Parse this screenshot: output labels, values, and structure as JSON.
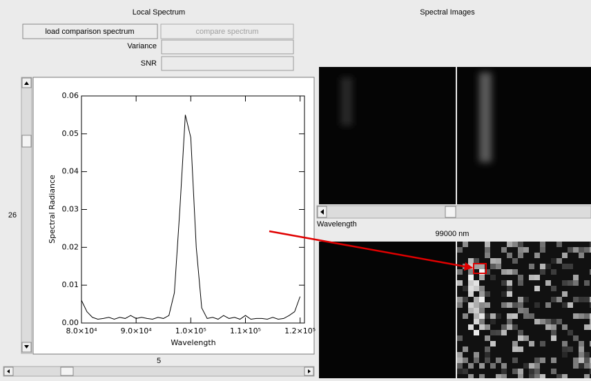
{
  "left_panel": {
    "title": "Local Spectrum",
    "buttons": [
      "load comparison spectrum",
      "compare spectrum"
    ],
    "fields": [
      "Variance",
      "SNR"
    ],
    "vertical_slider_value": 26,
    "horizontal_slider_value": 5
  },
  "chart_data": {
    "type": "line",
    "x_label": "Wavelength",
    "y_label": "Spectral Radiance",
    "color": "#000000",
    "x": [
      80000,
      81000,
      82000,
      83000,
      84000,
      85000,
      86000,
      87000,
      88000,
      89000,
      90000,
      91000,
      92000,
      93000,
      94000,
      95000,
      96000,
      97000,
      98000,
      99000,
      100000,
      101000,
      102000,
      103000,
      104000,
      105000,
      106000,
      107000,
      108000,
      109000,
      110000,
      111000,
      112000,
      113000,
      114000,
      115000,
      116000,
      117000,
      118000,
      119000,
      120000
    ],
    "values": [
      0.006,
      0.003,
      0.0015,
      0.001,
      0.0012,
      0.0015,
      0.001,
      0.0015,
      0.0012,
      0.002,
      0.0012,
      0.0015,
      0.0012,
      0.001,
      0.0015,
      0.0012,
      0.002,
      0.008,
      0.03,
      0.055,
      0.049,
      0.02,
      0.004,
      0.0012,
      0.0015,
      0.001,
      0.002,
      0.0012,
      0.0015,
      0.001,
      0.002,
      0.001,
      0.0012,
      0.0012,
      0.001,
      0.0015,
      0.001,
      0.0012,
      0.002,
      0.003,
      0.007
    ],
    "xlim": [
      80000,
      120800
    ],
    "ylim": [
      0,
      0.06
    ],
    "xticks": [
      {
        "value": 80000,
        "label": "8.0×10⁴"
      },
      {
        "value": 90000,
        "label": "9.0×10⁴"
      },
      {
        "value": 100000,
        "label": "1.0×10⁵"
      },
      {
        "value": 110000,
        "label": "1.1×10⁵"
      },
      {
        "value": 120000,
        "label": "1.2×10⁵"
      }
    ],
    "yticks": [
      {
        "value": 0,
        "label": "0.00"
      },
      0.01,
      0.02,
      0.03,
      0.04,
      0.05,
      0.06
    ]
  },
  "right_panel": {
    "title": "Spectral Images",
    "slider_label": "Wavelength",
    "wavelength_readout": "99000 nm"
  }
}
